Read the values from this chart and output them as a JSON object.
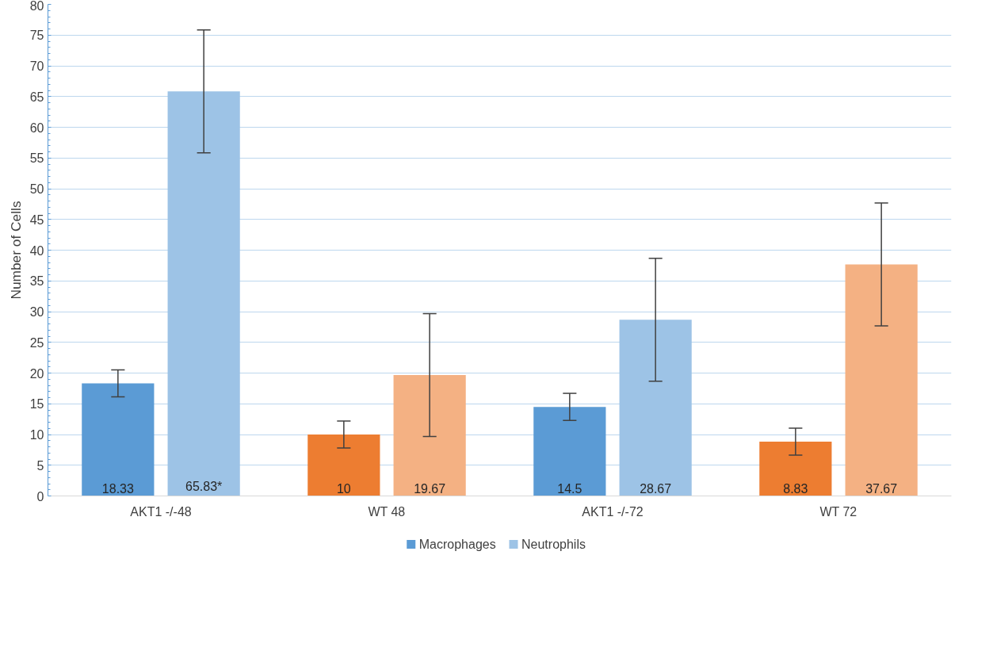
{
  "chart_data": {
    "type": "bar",
    "ylabel": "Number of Cells",
    "categories": [
      "AKT1 -/-48",
      "WT 48",
      "AKT1 -/-72",
      "WT 72"
    ],
    "series": [
      {
        "name": "Macrophages",
        "color": "#5b9bd5",
        "colors": [
          "#5b9bd5",
          "#ed7d31",
          "#5b9bd5",
          "#ed7d31"
        ],
        "values": [
          18.33,
          10,
          14.5,
          8.83
        ],
        "errors": [
          2.2,
          2.2,
          2.2,
          2.2
        ],
        "value_labels": [
          "18.33",
          "10",
          "14.5",
          "8.83"
        ]
      },
      {
        "name": "Neutrophils",
        "color": "#9dc3e6",
        "colors": [
          "#9dc3e6",
          "#f4b183",
          "#9dc3e6",
          "#f4b183"
        ],
        "values": [
          65.83,
          19.67,
          28.67,
          37.67
        ],
        "errors": [
          10,
          10,
          10,
          10
        ],
        "value_labels": [
          "65.83*",
          "19.67",
          "28.67",
          "37.67"
        ]
      }
    ],
    "ylim": [
      0,
      80
    ],
    "yticks": [
      0,
      5,
      10,
      15,
      20,
      25,
      30,
      35,
      40,
      45,
      50,
      55,
      60,
      65,
      70,
      75,
      80
    ],
    "grid": "y",
    "legend": "bottom"
  }
}
